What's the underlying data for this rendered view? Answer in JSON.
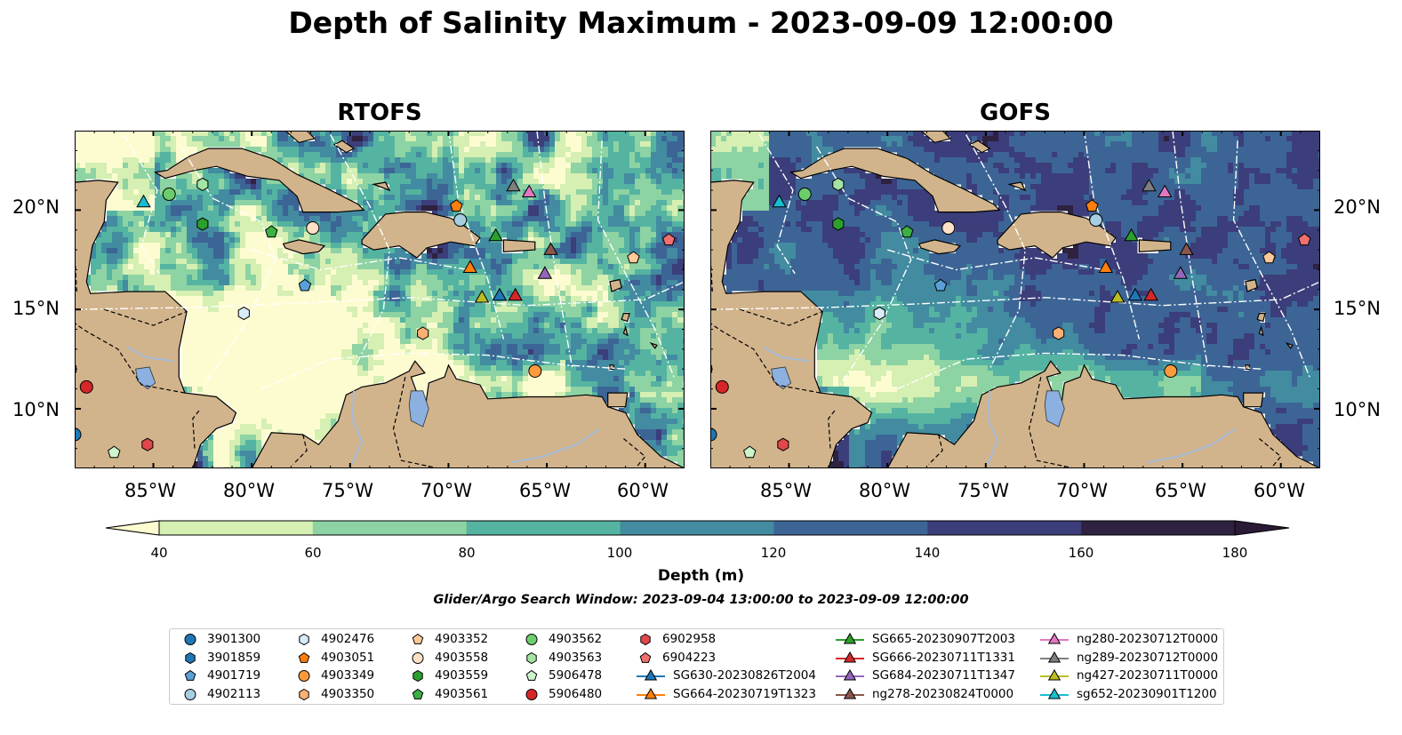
{
  "figure": {
    "title": "Depth of Salinity Maximum - 2023-09-09 12:00:00",
    "panels": [
      {
        "title": "RTOFS",
        "theme": "rtofs"
      },
      {
        "title": "GOFS",
        "theme": "gofs"
      }
    ],
    "lon_ticks": [
      "85°W",
      "80°W",
      "75°W",
      "70°W",
      "65°W",
      "60°W"
    ],
    "lat_ticks": [
      "20°N",
      "15°N",
      "10°N"
    ],
    "extent": {
      "lon": [
        -89,
        -58
      ],
      "lat": [
        7,
        24
      ]
    }
  },
  "colorbar": {
    "label": "Depth (m)",
    "ticks": [
      "40",
      "60",
      "80",
      "100",
      "120",
      "140",
      "160",
      "180"
    ],
    "levels": [
      40,
      60,
      80,
      100,
      120,
      140,
      160,
      180
    ],
    "colors": [
      "#d6efb3",
      "#8dd3a3",
      "#55b3a2",
      "#428ba0",
      "#3c6596",
      "#3b3e7a",
      "#2e2240"
    ],
    "under_color": "#fdfcd1",
    "over_color": "#2a1a35"
  },
  "colors": {
    "land": "#d2b48c",
    "lake": "#8cb0e0",
    "river": "#a6bcd9",
    "grid": "#ffffff"
  },
  "search_window": "Glider/Argo Search Window: 2023-09-04 13:00:00 to 2023-09-09 12:00:00",
  "legend": [
    {
      "label": "3901300",
      "marker": "circle",
      "color": "#1f77b4"
    },
    {
      "label": "3901859",
      "marker": "hexagon",
      "color": "#1f77b4"
    },
    {
      "label": "4901719",
      "marker": "pentagon",
      "color": "#5aa0d8"
    },
    {
      "label": "4902113",
      "marker": "circle",
      "color": "#a6cee3"
    },
    {
      "label": "4902476",
      "marker": "hexagon",
      "color": "#d6eaf8"
    },
    {
      "label": "4903051",
      "marker": "pentagon",
      "color": "#ff7f0e"
    },
    {
      "label": "4903349",
      "marker": "circle",
      "color": "#fd9a3c"
    },
    {
      "label": "4903350",
      "marker": "hexagon",
      "color": "#fdb072"
    },
    {
      "label": "4903352",
      "marker": "pentagon",
      "color": "#fdc998"
    },
    {
      "label": "4903558",
      "marker": "circle",
      "color": "#fde0c5"
    },
    {
      "label": "4903559",
      "marker": "hexagon",
      "color": "#2ca02c"
    },
    {
      "label": "4903561",
      "marker": "pentagon",
      "color": "#3cb043"
    },
    {
      "label": "4903562",
      "marker": "circle",
      "color": "#6ccd6c"
    },
    {
      "label": "4903563",
      "marker": "hexagon",
      "color": "#a3e4a3"
    },
    {
      "label": "5906478",
      "marker": "pentagon",
      "color": "#ccf5cc"
    },
    {
      "label": "5906480",
      "marker": "circle",
      "color": "#d62728"
    },
    {
      "label": "6902958",
      "marker": "hexagon",
      "color": "#e0474a"
    },
    {
      "label": "6904223",
      "marker": "pentagon",
      "color": "#f07070"
    },
    {
      "label": "SG630-20230826T2004",
      "marker": "triangle",
      "color": "#1f77b4"
    },
    {
      "label": "SG664-20230719T1323",
      "marker": "triangle",
      "color": "#ff7f0e"
    },
    {
      "label": "SG665-20230907T2003",
      "marker": "triangle",
      "color": "#2ca02c"
    },
    {
      "label": "SG666-20230711T1331",
      "marker": "triangle",
      "color": "#d62728"
    },
    {
      "label": "SG684-20230711T1347",
      "marker": "triangle",
      "color": "#9467bd"
    },
    {
      "label": "ng278-20230824T0000",
      "marker": "triangle",
      "color": "#8c564b"
    },
    {
      "label": "ng280-20230712T0000",
      "marker": "triangle",
      "color": "#e377c2"
    },
    {
      "label": "ng289-20230712T0000",
      "marker": "triangle",
      "color": "#7f7f7f"
    },
    {
      "label": "ng427-20230711T0000",
      "marker": "triangle",
      "color": "#bcbd22"
    },
    {
      "label": "sg652-20230901T1200",
      "marker": "triangle",
      "color": "#17becf"
    }
  ],
  "platforms": [
    {
      "id": "3901300",
      "lon": -89.0,
      "lat": 8.7
    },
    {
      "id": "3901859",
      "lon": -89.2,
      "lat": 12.0
    },
    {
      "id": "4901719",
      "lon": -77.3,
      "lat": 16.2
    },
    {
      "id": "4902113",
      "lon": -69.4,
      "lat": 19.5
    },
    {
      "id": "4902476",
      "lon": -80.4,
      "lat": 14.8
    },
    {
      "id": "4903051",
      "lon": -69.6,
      "lat": 20.2
    },
    {
      "id": "4903349",
      "lon": -65.6,
      "lat": 11.9
    },
    {
      "id": "4903350",
      "lon": -71.3,
      "lat": 13.8
    },
    {
      "id": "4903352",
      "lon": -60.6,
      "lat": 17.6
    },
    {
      "id": "4903558",
      "lon": -76.9,
      "lat": 19.1
    },
    {
      "id": "4903559",
      "lon": -82.5,
      "lat": 19.3
    },
    {
      "id": "4903561",
      "lon": -79.0,
      "lat": 18.9
    },
    {
      "id": "4903562",
      "lon": -84.2,
      "lat": 20.8
    },
    {
      "id": "4903563",
      "lon": -82.5,
      "lat": 21.3
    },
    {
      "id": "5906478",
      "lon": -87.0,
      "lat": 7.8
    },
    {
      "id": "5906480",
      "lon": -88.4,
      "lat": 11.1
    },
    {
      "id": "6902958",
      "lon": -85.3,
      "lat": 8.2
    },
    {
      "id": "6904223",
      "lon": -58.8,
      "lat": 18.5
    },
    {
      "id": "SG630-20230826T2004",
      "lon": -67.4,
      "lat": 15.7
    },
    {
      "id": "SG664-20230719T1323",
      "lon": -68.9,
      "lat": 17.1
    },
    {
      "id": "SG665-20230907T2003",
      "lon": -67.6,
      "lat": 18.7
    },
    {
      "id": "SG666-20230711T1331",
      "lon": -66.6,
      "lat": 15.7
    },
    {
      "id": "SG684-20230711T1347",
      "lon": -65.1,
      "lat": 16.8
    },
    {
      "id": "ng278-20230824T0000",
      "lon": -64.8,
      "lat": 18.0
    },
    {
      "id": "ng280-20230712T0000",
      "lon": -65.9,
      "lat": 20.9
    },
    {
      "id": "ng289-20230712T0000",
      "lon": -66.7,
      "lat": 21.2
    },
    {
      "id": "ng427-20230711T0000",
      "lon": -68.3,
      "lat": 15.6
    },
    {
      "id": "sg652-20230901T1200",
      "lon": -85.5,
      "lat": 20.4
    }
  ]
}
